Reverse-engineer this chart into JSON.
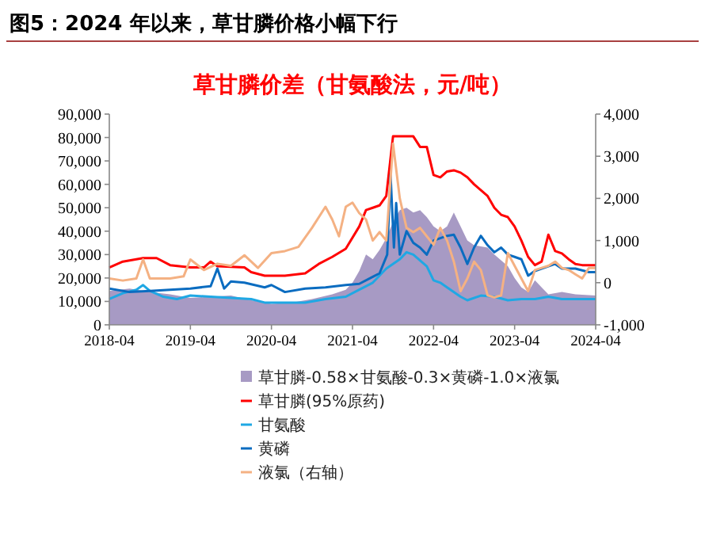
{
  "chart_data": {
    "type": "line",
    "title": "图5：2024 年以来，草甘膦价格小幅下行",
    "subtitle": "草甘膦价差（甘氨酸法，元/吨）",
    "legend": "bottom",
    "marker": "none",
    "xlim": [
      "2018-04",
      "2024-04"
    ],
    "xticks": [
      "2018-04",
      "2019-04",
      "2020-04",
      "2021-04",
      "2022-04",
      "2023-04",
      "2024-04"
    ],
    "ylim": [
      0,
      90000
    ],
    "yticks": [
      {
        "value": 0,
        "label": "0"
      },
      {
        "value": 10000,
        "label": "10,000"
      },
      {
        "value": 20000,
        "label": "20,000"
      },
      {
        "value": 30000,
        "label": "30,000"
      },
      {
        "value": 40000,
        "label": "40,000"
      },
      {
        "value": 50000,
        "label": "50,000"
      },
      {
        "value": 60000,
        "label": "60,000"
      },
      {
        "value": 70000,
        "label": "70,000"
      },
      {
        "value": 80000,
        "label": "80,000"
      },
      {
        "value": 90000,
        "label": "90,000"
      }
    ],
    "y2lim": [
      -1000,
      4000
    ],
    "y2ticks": [
      {
        "value": -1000,
        "label": "-1,000"
      },
      {
        "value": 0,
        "label": "0"
      },
      {
        "value": 1000,
        "label": "1,000"
      },
      {
        "value": 2000,
        "label": "2,000"
      },
      {
        "value": 3000,
        "label": "3,000"
      },
      {
        "value": 4000,
        "label": "4,000"
      }
    ],
    "series": [
      {
        "name": "草甘膦-0.58×甘氨酸-0.3×黄磷-1.0×液氯",
        "type": "area",
        "color": "#a79ac4",
        "x": [
          "2018-04",
          "2018-07",
          "2018-10",
          "2019-01",
          "2019-04",
          "2019-07",
          "2019-10",
          "2020-01",
          "2020-04",
          "2020-07",
          "2020-10",
          "2021-01",
          "2021-03",
          "2021-04",
          "2021-05",
          "2021-06",
          "2021-07",
          "2021-08",
          "2021-09",
          "2021-10",
          "2021-11",
          "2021-12",
          "2022-01",
          "2022-02",
          "2022-03",
          "2022-04",
          "2022-05",
          "2022-06",
          "2022-07",
          "2022-08",
          "2022-09",
          "2022-10",
          "2022-12",
          "2023-01",
          "2023-03",
          "2023-04",
          "2023-05",
          "2023-06",
          "2023-07",
          "2023-08",
          "2023-09",
          "2023-11",
          "2024-01",
          "2024-04"
        ],
        "values": [
          14500,
          15500,
          14000,
          13000,
          11500,
          12000,
          12500,
          10500,
          9000,
          9500,
          11000,
          13000,
          15000,
          18000,
          23000,
          30000,
          28000,
          32000,
          37000,
          44000,
          49000,
          50000,
          48000,
          49000,
          46000,
          42000,
          40000,
          42000,
          48000,
          42000,
          36000,
          34000,
          33000,
          30000,
          25000,
          20000,
          16000,
          14000,
          19000,
          16000,
          13000,
          14000,
          13000,
          12500
        ]
      },
      {
        "name": "草甘膦(95%原药)",
        "color": "#ff0000",
        "x": [
          "2018-04",
          "2018-06",
          "2018-09",
          "2018-11",
          "2019-01",
          "2019-04",
          "2019-06",
          "2019-07",
          "2019-08",
          "2019-12",
          "2020-01",
          "2020-03",
          "2020-06",
          "2020-09",
          "2020-11",
          "2021-01",
          "2021-03",
          "2021-05",
          "2021-06",
          "2021-07",
          "2021-08",
          "2021-09",
          "2021-10",
          "2021-11",
          "2021-12",
          "2022-01",
          "2022-02",
          "2022-03",
          "2022-04",
          "2022-05",
          "2022-06",
          "2022-07",
          "2022-08",
          "2022-09",
          "2022-10",
          "2022-12",
          "2023-01",
          "2023-02",
          "2023-03",
          "2023-04",
          "2023-05",
          "2023-06",
          "2023-07",
          "2023-08",
          "2023-09",
          "2023-10",
          "2023-11",
          "2023-12",
          "2024-01",
          "2024-02",
          "2024-04"
        ],
        "values": [
          24500,
          27000,
          28500,
          28500,
          25500,
          24500,
          24500,
          27000,
          25000,
          24500,
          22500,
          21000,
          21000,
          22000,
          26000,
          29000,
          32500,
          42000,
          49000,
          50000,
          51000,
          55000,
          80500,
          80500,
          80500,
          80500,
          76000,
          76000,
          64000,
          63000,
          65500,
          66000,
          65000,
          63000,
          60000,
          55000,
          50000,
          47000,
          46000,
          42000,
          36000,
          29000,
          25500,
          27000,
          38500,
          31500,
          30500,
          28000,
          26000,
          25500,
          25500
        ]
      },
      {
        "name": "甘氨酸",
        "color": "#1fa8e4",
        "x": [
          "2018-04",
          "2018-06",
          "2018-08",
          "2018-09",
          "2018-10",
          "2018-12",
          "2019-02",
          "2019-04",
          "2019-07",
          "2019-10",
          "2020-01",
          "2020-03",
          "2020-06",
          "2020-09",
          "2020-12",
          "2021-03",
          "2021-05",
          "2021-07",
          "2021-09",
          "2021-11",
          "2021-12",
          "2022-01",
          "2022-03",
          "2022-04",
          "2022-05",
          "2022-06",
          "2022-08",
          "2022-09",
          "2022-11",
          "2023-01",
          "2023-03",
          "2023-05",
          "2023-07",
          "2023-09",
          "2023-11",
          "2024-01",
          "2024-04"
        ],
        "values": [
          11000,
          13500,
          15000,
          17000,
          14500,
          12000,
          11000,
          12500,
          12000,
          11500,
          11000,
          9500,
          9500,
          9500,
          11000,
          12000,
          15000,
          18000,
          24000,
          28000,
          31000,
          30000,
          25000,
          19000,
          18000,
          16000,
          12000,
          10500,
          12500,
          12000,
          10500,
          11000,
          11000,
          12000,
          11000,
          11000,
          11000
        ]
      },
      {
        "name": "黄磷",
        "color": "#0a6cc0",
        "x": [
          "2018-04",
          "2018-07",
          "2018-10",
          "2019-01",
          "2019-04",
          "2019-07",
          "2019-08",
          "2019-09",
          "2019-10",
          "2019-12",
          "2020-03",
          "2020-04",
          "2020-06",
          "2020-09",
          "2020-12",
          "2021-03",
          "2021-05",
          "2021-07",
          "2021-08",
          "2021-09-05",
          "2021-09-20",
          "2021-10-05",
          "2021-10-15",
          "2021-11-01",
          "2021-12",
          "2022-01",
          "2022-02",
          "2022-03",
          "2022-04",
          "2022-05",
          "2022-06",
          "2022-07",
          "2022-08",
          "2022-09",
          "2022-10",
          "2022-11",
          "2022-12",
          "2023-01",
          "2023-02",
          "2023-03",
          "2023-04",
          "2023-05",
          "2023-06",
          "2023-07",
          "2023-08",
          "2023-09",
          "2023-10",
          "2023-11",
          "2024-01",
          "2024-03",
          "2024-04"
        ],
        "values": [
          15500,
          14000,
          14500,
          15000,
          15500,
          16500,
          24000,
          15500,
          18500,
          18000,
          16000,
          17000,
          14000,
          15500,
          16000,
          17000,
          17500,
          20500,
          22000,
          30000,
          64000,
          33000,
          52000,
          30000,
          40000,
          35000,
          33000,
          30000,
          36000,
          37000,
          38000,
          38500,
          33000,
          26000,
          33000,
          38000,
          34000,
          31000,
          33000,
          30000,
          29000,
          28000,
          21000,
          23000,
          24000,
          25000,
          26000,
          24000,
          24000,
          22500,
          22500
        ]
      },
      {
        "name": "液氯（右轴）",
        "color": "#f4b183",
        "axis": "y2",
        "x": [
          "2018-04",
          "2018-06",
          "2018-08",
          "2018-09",
          "2018-10",
          "2019-01",
          "2019-03",
          "2019-04",
          "2019-06",
          "2019-08",
          "2019-10",
          "2019-12",
          "2020-02",
          "2020-04",
          "2020-06",
          "2020-08",
          "2020-10",
          "2020-12",
          "2021-01",
          "2021-02",
          "2021-03",
          "2021-04",
          "2021-05",
          "2021-06",
          "2021-07",
          "2021-08",
          "2021-09",
          "2021-10",
          "2021-11",
          "2021-12",
          "2022-01",
          "2022-02",
          "2022-03",
          "2022-04",
          "2022-05",
          "2022-06",
          "2022-07",
          "2022-08",
          "2022-09",
          "2022-10",
          "2022-11",
          "2022-12",
          "2023-01",
          "2023-02",
          "2023-03",
          "2023-04",
          "2023-05",
          "2023-06",
          "2023-07",
          "2023-08",
          "2023-09",
          "2023-10",
          "2023-11",
          "2023-12",
          "2024-01",
          "2024-02",
          "2024-03",
          "2024-04"
        ],
        "values": [
          100,
          50,
          100,
          550,
          100,
          100,
          150,
          550,
          300,
          450,
          400,
          650,
          350,
          700,
          750,
          850,
          1300,
          1800,
          1500,
          1100,
          1800,
          1900,
          1650,
          1500,
          1000,
          1200,
          1000,
          3300,
          2000,
          1300,
          1200,
          1300,
          1100,
          900,
          1300,
          1000,
          500,
          -200,
          100,
          500,
          300,
          -300,
          -350,
          -300,
          700,
          400,
          100,
          -200,
          300,
          350,
          400,
          500,
          350,
          300,
          200,
          100,
          350,
          350
        ]
      }
    ]
  }
}
